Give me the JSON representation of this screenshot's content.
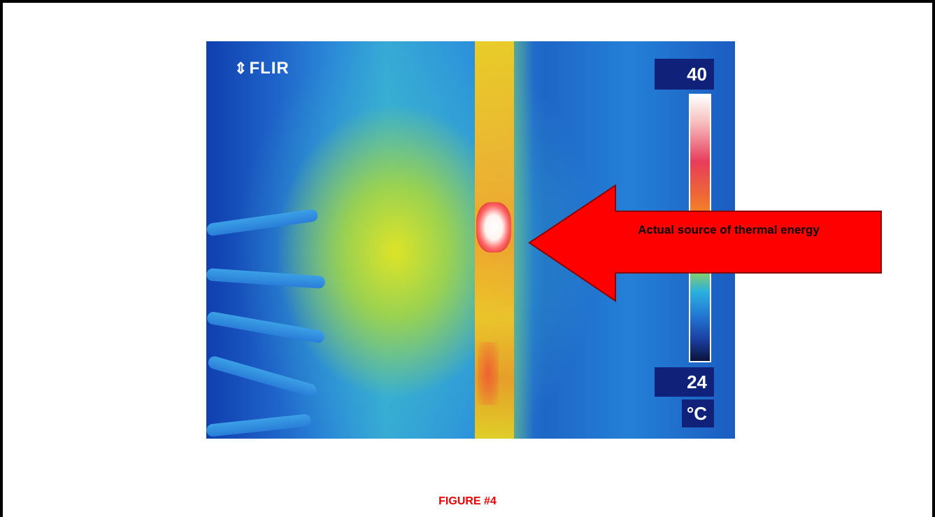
{
  "image": {
    "logo": "FLIR",
    "scale_max": "40",
    "scale_min": "24",
    "scale_unit": "°C"
  },
  "annotation": {
    "text": "Actual source of thermal energy",
    "arrow_color": "#ff0000"
  },
  "caption": "FIGURE #4"
}
